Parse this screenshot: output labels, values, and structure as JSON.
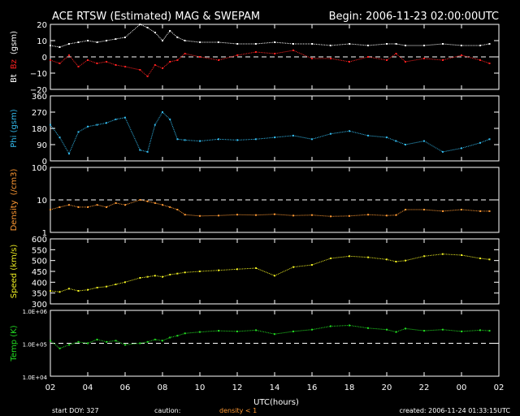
{
  "header": {
    "title": "ACE RTSW (Estimated) MAG & SWEPAM",
    "begin": "Begin: 2006-11-23 02:00:00UTC"
  },
  "footer": {
    "start_doy": "start DOY: 327",
    "caution": "caution:",
    "density_note": "density < 1",
    "created": "created: 2006-11-24 01:33:15UTC"
  },
  "colors": {
    "bt": "#ffffff",
    "bz": "#ff2020",
    "phi": "#33bbee",
    "density": "#ff9933",
    "speed": "#eeee22",
    "temp": "#22dd22",
    "frame": "#ffffff",
    "dashed": "#ffffff",
    "caution": "#ff9933"
  },
  "chart_data": [
    {
      "type": "scatter",
      "ylabel": [
        "Bt",
        "Bz",
        "(gsm)"
      ],
      "ylim": [
        -20,
        20
      ],
      "yticks": [
        -20,
        -10,
        0,
        10,
        20
      ],
      "ytick_labels": [
        "−20",
        "−10",
        "0",
        "10",
        "20"
      ],
      "dashed_at": 0,
      "series": [
        {
          "name": "Bt",
          "color_key": "bt",
          "x": [
            2.0,
            2.5,
            3.0,
            3.5,
            4.0,
            4.5,
            5.0,
            5.5,
            6.0,
            6.8,
            7.2,
            7.6,
            8.0,
            8.4,
            8.8,
            9.2,
            10,
            11,
            12,
            13,
            14,
            15,
            16,
            17,
            18,
            19,
            20,
            20.5,
            21,
            22,
            23,
            24,
            25,
            25.5
          ],
          "y": [
            7,
            6,
            8,
            9,
            10,
            9,
            10,
            11,
            12,
            20,
            18,
            15,
            10,
            16,
            12,
            10,
            9,
            9,
            8,
            8,
            9,
            8,
            8,
            7,
            8,
            7,
            8,
            8,
            7,
            7,
            8,
            7,
            7,
            8
          ]
        },
        {
          "name": "Bz",
          "color_key": "bz",
          "x": [
            2.0,
            2.5,
            3.0,
            3.5,
            4.0,
            4.5,
            5.0,
            5.5,
            6.0,
            6.8,
            7.2,
            7.6,
            8.0,
            8.4,
            8.8,
            9.2,
            10,
            11,
            12,
            13,
            14,
            15,
            16,
            17,
            18,
            19,
            20,
            20.5,
            21,
            22,
            23,
            24,
            25,
            25.5
          ],
          "y": [
            -2,
            -4,
            1,
            -6,
            -2,
            -4,
            -3,
            -5,
            -6,
            -8,
            -12,
            -5,
            -7,
            -3,
            -2,
            2,
            0,
            -2,
            1,
            3,
            2,
            4,
            -1,
            -1,
            -3,
            0,
            -2,
            2,
            -3,
            -1,
            -2,
            1,
            -2,
            -4
          ]
        }
      ]
    },
    {
      "type": "scatter",
      "ylabel": [
        "Phi (gsm)"
      ],
      "ylim": [
        0,
        360
      ],
      "yticks": [
        0,
        90,
        180,
        270,
        360
      ],
      "ytick_labels": [
        "0",
        "90",
        "180",
        "270",
        "360"
      ],
      "series": [
        {
          "name": "Phi",
          "color_key": "phi",
          "x": [
            2.0,
            2.5,
            3.0,
            3.5,
            4.0,
            4.5,
            5.0,
            5.5,
            6.0,
            6.8,
            7.2,
            7.6,
            8.0,
            8.4,
            8.8,
            9.2,
            10,
            11,
            12,
            13,
            14,
            15,
            16,
            17,
            18,
            19,
            20,
            20.5,
            21,
            22,
            23,
            24,
            25,
            25.5
          ],
          "y": [
            200,
            130,
            40,
            160,
            190,
            200,
            210,
            230,
            240,
            60,
            50,
            200,
            270,
            230,
            120,
            115,
            110,
            120,
            115,
            120,
            130,
            140,
            120,
            150,
            165,
            140,
            130,
            110,
            90,
            110,
            50,
            70,
            100,
            120
          ]
        }
      ]
    },
    {
      "type": "scatter",
      "ylabel": [
        "Density",
        "(/cm3)"
      ],
      "yscale": "log",
      "ylim": [
        1,
        100
      ],
      "yticks": [
        1,
        10,
        100
      ],
      "ytick_labels": [
        "1",
        "10",
        "100"
      ],
      "dashed_at": 10,
      "series": [
        {
          "name": "Density",
          "color_key": "density",
          "x": [
            2.0,
            2.5,
            3.0,
            3.5,
            4.0,
            4.5,
            5.0,
            5.5,
            6.0,
            6.8,
            7.2,
            7.6,
            8.0,
            8.4,
            8.8,
            9.2,
            10,
            11,
            12,
            13,
            14,
            15,
            16,
            17,
            18,
            19,
            20,
            20.5,
            21,
            22,
            23,
            24,
            25,
            25.5
          ],
          "y": [
            5,
            6,
            7,
            6,
            6,
            7,
            6,
            8,
            7,
            10,
            9,
            8,
            7,
            6,
            5,
            3.5,
            3.2,
            3.3,
            3.5,
            3.4,
            3.6,
            3.3,
            3.4,
            3.1,
            3.2,
            3.5,
            3.3,
            3.4,
            5,
            5,
            4.5,
            5,
            4.5,
            4.5
          ]
        }
      ]
    },
    {
      "type": "scatter",
      "ylabel": [
        "Speed (km/s)"
      ],
      "ylim": [
        300,
        600
      ],
      "yticks": [
        300,
        350,
        400,
        450,
        500,
        550,
        600
      ],
      "ytick_labels": [
        "300",
        "350",
        "400",
        "450",
        "500",
        "550",
        "600"
      ],
      "series": [
        {
          "name": "Speed",
          "color_key": "speed",
          "x": [
            2.0,
            2.5,
            3.0,
            3.5,
            4.0,
            4.5,
            5.0,
            5.5,
            6.0,
            6.8,
            7.2,
            7.6,
            8.0,
            8.4,
            8.8,
            9.2,
            10,
            11,
            12,
            13,
            14,
            15,
            16,
            17,
            18,
            19,
            20,
            20.5,
            21,
            22,
            23,
            24,
            25,
            25.5
          ],
          "y": [
            360,
            355,
            370,
            360,
            365,
            375,
            380,
            390,
            400,
            420,
            425,
            430,
            425,
            435,
            440,
            445,
            450,
            455,
            460,
            465,
            430,
            470,
            480,
            510,
            520,
            515,
            505,
            495,
            500,
            520,
            530,
            525,
            510,
            505
          ]
        }
      ]
    },
    {
      "type": "scatter",
      "ylabel": [
        "Temp (K)"
      ],
      "yscale": "log",
      "ylim": [
        10000,
        1000000
      ],
      "yticks": [
        10000,
        100000,
        1000000
      ],
      "ytick_labels": [
        "1.0E+04",
        "1.0E+05",
        "1.0E+06"
      ],
      "dashed_at": 100000,
      "series": [
        {
          "name": "Temp",
          "color_key": "temp",
          "x": [
            2.0,
            2.5,
            3.0,
            3.5,
            4.0,
            4.5,
            5.0,
            5.5,
            6.0,
            6.8,
            7.2,
            7.6,
            8.0,
            8.4,
            8.8,
            9.2,
            10,
            11,
            12,
            13,
            14,
            15,
            16,
            17,
            18,
            19,
            20,
            20.5,
            21,
            22,
            23,
            24,
            25,
            25.5
          ],
          "y": [
            120000,
            70000,
            90000,
            110000,
            100000,
            130000,
            110000,
            120000,
            90000,
            100000,
            110000,
            130000,
            120000,
            150000,
            170000,
            200000,
            220000,
            240000,
            230000,
            250000,
            190000,
            230000,
            260000,
            330000,
            350000,
            290000,
            260000,
            220000,
            280000,
            240000,
            260000,
            230000,
            250000,
            240000
          ]
        }
      ]
    }
  ],
  "x_axis": {
    "label": "UTC(hours)",
    "range": [
      2,
      26
    ],
    "major_ticks": [
      2,
      4,
      6,
      8,
      10,
      12,
      14,
      16,
      18,
      20,
      22,
      24,
      26
    ],
    "tick_labels": [
      "02",
      "04",
      "06",
      "08",
      "10",
      "12",
      "14",
      "16",
      "18",
      "20",
      "22",
      "00",
      "02"
    ]
  }
}
